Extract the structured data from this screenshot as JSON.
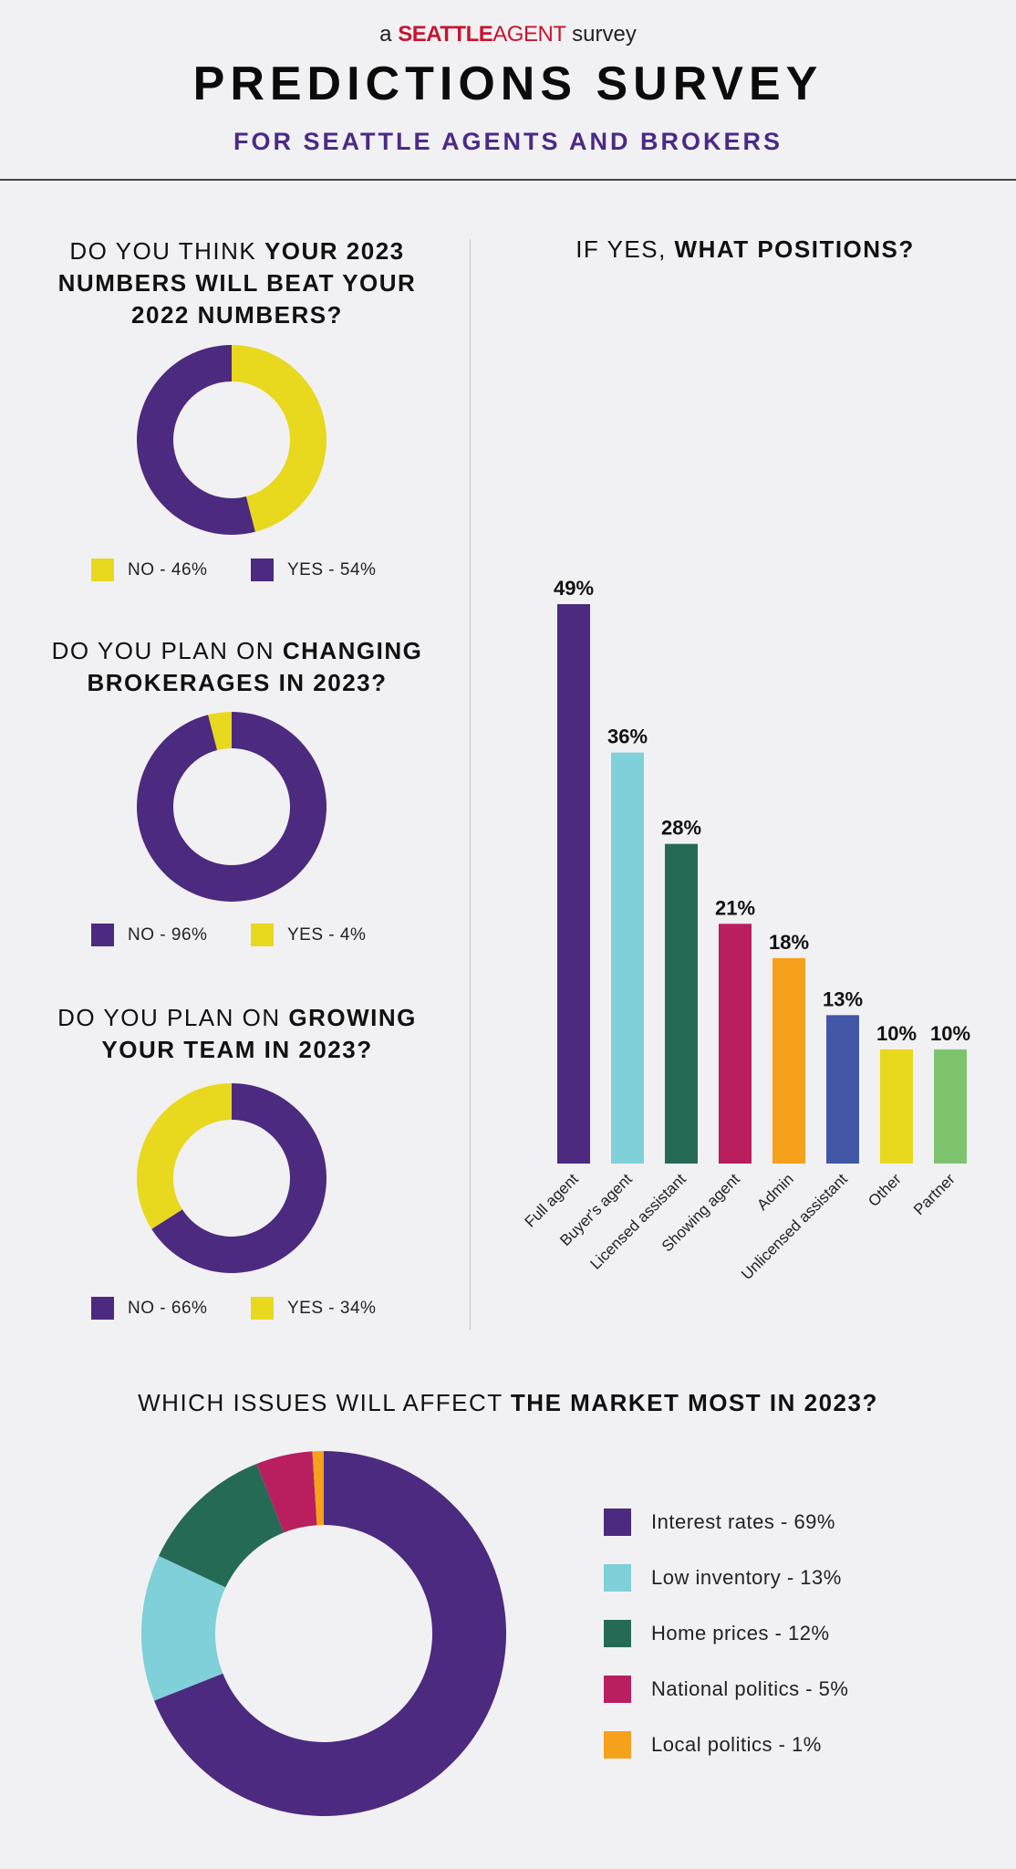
{
  "header": {
    "brand_prefix": "a",
    "brand_seattle": "SEATTLE",
    "brand_agent": "AGENT",
    "brand_suffix": "survey",
    "title": "PREDICTIONS SURVEY",
    "subtitle": "FOR SEATTLE AGENTS AND BROKERS"
  },
  "colors": {
    "purple": "#4b2a7f",
    "yellow": "#e8d81e",
    "teal": "#7fd0d8",
    "green": "#256a55",
    "magenta": "#b91e5f",
    "orange": "#f6a11b",
    "blue": "#4257a6",
    "light_green": "#7ec46f",
    "title_purple": "#4b2a85"
  },
  "questions": {
    "q1": {
      "part1": "DO YOU THINK ",
      "bold1": "YOUR 2023",
      "bold2": "NUMBERS WILL BEAT YOUR",
      "bold3": "2022 NUMBERS?"
    },
    "q2": {
      "part1": "DO YOU PLAN ON ",
      "bold1": "CHANGING",
      "bold2": "BROKERAGES IN 2023?"
    },
    "q3": {
      "part1": "DO YOU PLAN ON ",
      "bold1": "GROWING",
      "bold2": "YOUR TEAM IN 2023?"
    },
    "bar": {
      "part1": "IF YES, ",
      "bold1": "WHAT POSITIONS?"
    },
    "issues": {
      "part1": "WHICH ISSUES WILL AFFECT ",
      "bold1": "THE MARKET MOST IN 2023?"
    }
  },
  "legends": {
    "q1": [
      {
        "label": "NO - 46%"
      },
      {
        "label": "YES - 54%"
      }
    ],
    "q2": [
      {
        "label": "NO - 96%"
      },
      {
        "label": "YES - 4%"
      }
    ],
    "q3": [
      {
        "label": "NO - 66%"
      },
      {
        "label": "YES - 34%"
      }
    ],
    "issues": [
      {
        "label": "Interest rates - 69%"
      },
      {
        "label": "Low inventory - 13%"
      },
      {
        "label": "Home prices - 12%"
      },
      {
        "label": "National politics - 5%"
      },
      {
        "label": "Local politics - 1%"
      }
    ]
  },
  "chart_data": [
    {
      "type": "pie",
      "title": "DO YOU THINK YOUR 2023 NUMBERS WILL BEAT YOUR 2022 NUMBERS?",
      "categories": [
        "NO",
        "YES"
      ],
      "values": [
        46,
        54
      ],
      "slice_colors": [
        "#e8d81e",
        "#4b2a7f"
      ]
    },
    {
      "type": "pie",
      "title": "DO YOU PLAN ON CHANGING BROKERAGES IN 2023?",
      "categories": [
        "NO",
        "YES"
      ],
      "values": [
        96,
        4
      ],
      "slice_colors": [
        "#4b2a7f",
        "#e8d81e"
      ]
    },
    {
      "type": "pie",
      "title": "DO YOU PLAN ON GROWING YOUR TEAM IN 2023?",
      "categories": [
        "NO",
        "YES"
      ],
      "values": [
        66,
        34
      ],
      "slice_colors": [
        "#4b2a7f",
        "#e8d81e"
      ]
    },
    {
      "type": "bar",
      "title": "IF YES, WHAT POSITIONS?",
      "categories": [
        "Full agent",
        "Buyer's agent",
        "Licensed assistant",
        "Showing agent",
        "Admin",
        "Unlicensed assistant",
        "Other",
        "Partner"
      ],
      "values": [
        49,
        36,
        28,
        21,
        18,
        13,
        10,
        10
      ],
      "data_labels": [
        "49%",
        "36%",
        "28%",
        "21%",
        "18%",
        "13%",
        "10%",
        "10%"
      ],
      "bar_colors": [
        "#4b2a7f",
        "#7fd0d8",
        "#256a55",
        "#b91e5f",
        "#f6a11b",
        "#4257a6",
        "#e8d81e",
        "#7ec46f"
      ],
      "ylim": [
        0,
        49
      ],
      "grid": false
    },
    {
      "type": "pie",
      "title": "WHICH ISSUES WILL AFFECT THE MARKET MOST IN 2023?",
      "categories": [
        "Interest rates",
        "Low inventory",
        "Home prices",
        "National politics",
        "Local politics"
      ],
      "values": [
        69,
        13,
        12,
        5,
        1
      ],
      "slice_colors": [
        "#4b2a7f",
        "#7fd0d8",
        "#256a55",
        "#b91e5f",
        "#f6a11b"
      ]
    }
  ]
}
